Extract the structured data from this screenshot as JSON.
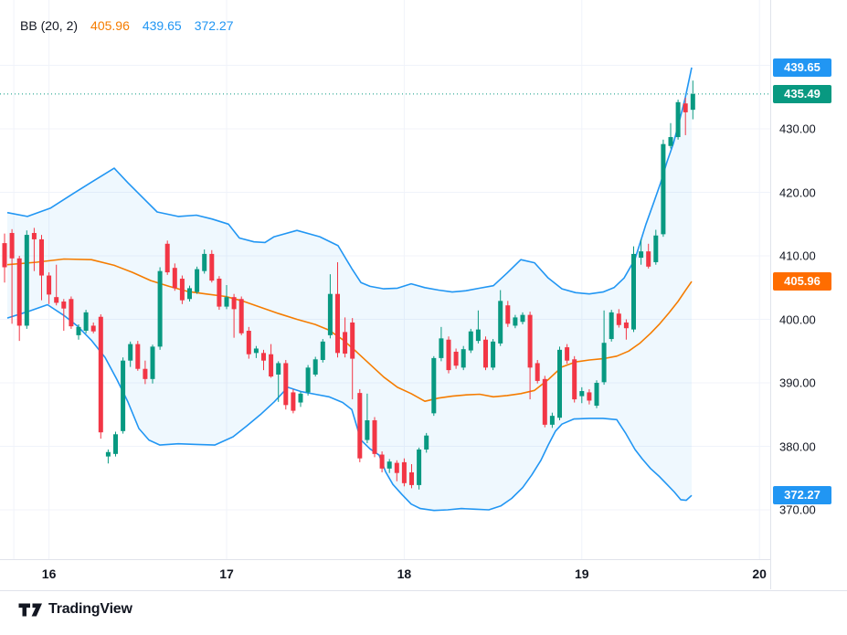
{
  "legend": {
    "name": "BB (20, 2)",
    "basis_value": "405.96",
    "upper_value": "439.65",
    "lower_value": "372.27"
  },
  "logo": {
    "text": "TradingView"
  },
  "colors": {
    "up": "#089981",
    "down": "#f23645",
    "band_line": "#2196f3",
    "band_fill": "rgba(33,150,243,0.07)",
    "basis_line": "#f57c00",
    "price_line": "#089981",
    "legend_basis": "#f57c00",
    "legend_band": "#2196f3",
    "badge_blue": "#2196f3",
    "badge_green": "#089981",
    "badge_orange": "#ff6d00",
    "text": "#131722",
    "grid": "#f0f3fa",
    "axis_border": "#e0e3eb"
  },
  "price_axis": {
    "labels": [
      {
        "text": "430.00",
        "price": 430
      },
      {
        "text": "420.00",
        "price": 420
      },
      {
        "text": "410.00",
        "price": 410
      },
      {
        "text": "400.00",
        "price": 400
      },
      {
        "text": "390.00",
        "price": 390
      },
      {
        "text": "380.00",
        "price": 380
      },
      {
        "text": "370.00",
        "price": 370
      }
    ],
    "badges": [
      {
        "text": "439.65",
        "price": 439.65,
        "color_key": "badge_blue"
      },
      {
        "text": "435.49",
        "price": 435.49,
        "color_key": "badge_green"
      },
      {
        "text": "405.96",
        "price": 405.96,
        "color_key": "badge_orange"
      },
      {
        "text": "372.27",
        "price": 372.27,
        "color_key": "badge_blue"
      }
    ]
  },
  "time_axis": {
    "labels": [
      {
        "text": "16",
        "index": 6
      },
      {
        "text": "17",
        "index": 30
      },
      {
        "text": "18",
        "index": 54
      },
      {
        "text": "19",
        "index": 78
      },
      {
        "text": "20",
        "index": 102
      }
    ]
  },
  "chart_data": {
    "type": "candlestick",
    "title": "BB (20, 2)",
    "indicator": {
      "name": "Bollinger Bands",
      "length": 20,
      "stddev": 2,
      "basis": 405.96,
      "upper": 439.65,
      "lower": 372.27
    },
    "last_price": 435.49,
    "ylim": [
      366,
      443
    ],
    "h_grid_prices": [
      440,
      430,
      420,
      410,
      400,
      390,
      380,
      370
    ],
    "v_grid_indices": [
      1.25,
      6,
      30,
      54,
      78,
      102
    ],
    "candles": [
      [
        412.0,
        413.5,
        405.8,
        408.2
      ],
      [
        413.6,
        414.2,
        399.3,
        409.6
      ],
      [
        409.6,
        410.0,
        396.6,
        399.0
      ],
      [
        399.0,
        414.0,
        398.5,
        413.3
      ],
      [
        413.6,
        414.4,
        407.6,
        412.6
      ],
      [
        412.6,
        413.3,
        403.0,
        406.9
      ],
      [
        406.9,
        407.4,
        402.4,
        403.9
      ],
      [
        403.5,
        408.6,
        402.2,
        402.6
      ],
      [
        402.8,
        403.2,
        398.2,
        401.7
      ],
      [
        403.2,
        403.6,
        398.5,
        398.9
      ],
      [
        397.5,
        399.2,
        396.8,
        398.8
      ],
      [
        398.2,
        401.5,
        397.8,
        401.1
      ],
      [
        399.0,
        399.5,
        397.8,
        398.1
      ],
      [
        400.4,
        400.8,
        381.2,
        382.2
      ],
      [
        378.4,
        379.5,
        377.3,
        379.1
      ],
      [
        378.8,
        382.3,
        378.4,
        381.9
      ],
      [
        382.4,
        394.0,
        382.0,
        393.5
      ],
      [
        393.5,
        396.5,
        392.5,
        396.1
      ],
      [
        396.1,
        396.6,
        391.9,
        392.2
      ],
      [
        392.2,
        393.5,
        389.8,
        390.6
      ],
      [
        390.6,
        396.0,
        389.9,
        395.7
      ],
      [
        395.7,
        408.2,
        395.2,
        407.6
      ],
      [
        411.9,
        412.4,
        407.0,
        407.4
      ],
      [
        408.1,
        408.8,
        404.5,
        404.9
      ],
      [
        406.4,
        406.9,
        402.4,
        403.0
      ],
      [
        403.2,
        405.3,
        402.8,
        404.9
      ],
      [
        404.3,
        408.3,
        404.0,
        407.9
      ],
      [
        407.6,
        411.0,
        407.2,
        410.3
      ],
      [
        410.3,
        410.9,
        405.8,
        406.1
      ],
      [
        406.4,
        406.8,
        401.5,
        402.0
      ],
      [
        402.0,
        405.4,
        401.6,
        403.5
      ],
      [
        403.5,
        404.0,
        397.1,
        401.6
      ],
      [
        403.2,
        403.6,
        397.5,
        397.8
      ],
      [
        398.2,
        398.8,
        393.8,
        394.5
      ],
      [
        394.7,
        395.8,
        393.9,
        395.4
      ],
      [
        394.7,
        395.2,
        392.0,
        393.5
      ],
      [
        394.5,
        396.1,
        390.8,
        391.0
      ],
      [
        391.3,
        393.4,
        387.0,
        393.1
      ],
      [
        393.1,
        393.6,
        385.8,
        386.5
      ],
      [
        388.5,
        389.0,
        385.2,
        385.6
      ],
      [
        386.9,
        388.6,
        386.2,
        388.3
      ],
      [
        388.5,
        392.8,
        388.0,
        392.4
      ],
      [
        391.3,
        394.1,
        391.0,
        393.7
      ],
      [
        393.6,
        396.9,
        393.2,
        396.5
      ],
      [
        397.5,
        407.1,
        397.0,
        404.0
      ],
      [
        404.0,
        409.0,
        394.0,
        394.7
      ],
      [
        398.0,
        400.3,
        394.0,
        394.6
      ],
      [
        399.5,
        400.2,
        387.4,
        393.8
      ],
      [
        388.4,
        389.0,
        377.5,
        378.1
      ],
      [
        381.0,
        388.3,
        380.5,
        384.1
      ],
      [
        384.1,
        384.6,
        378.3,
        378.8
      ],
      [
        378.7,
        379.2,
        375.9,
        376.5
      ],
      [
        376.5,
        378.0,
        375.8,
        377.6
      ],
      [
        377.4,
        377.8,
        374.5,
        375.8
      ],
      [
        377.5,
        378.1,
        373.7,
        374.2
      ],
      [
        375.9,
        377.2,
        373.4,
        373.9
      ],
      [
        373.9,
        379.8,
        373.2,
        379.5
      ],
      [
        379.5,
        382.1,
        379.0,
        381.7
      ],
      [
        385.2,
        394.2,
        384.8,
        393.9
      ],
      [
        393.9,
        398.8,
        393.4,
        397.0
      ],
      [
        396.8,
        397.3,
        391.5,
        392.0
      ],
      [
        394.9,
        395.4,
        392.2,
        392.7
      ],
      [
        392.4,
        395.8,
        392.0,
        395.3
      ],
      [
        395.1,
        398.5,
        394.7,
        398.1
      ],
      [
        396.6,
        401.4,
        396.2,
        398.4
      ],
      [
        396.8,
        397.3,
        392.0,
        392.4
      ],
      [
        392.4,
        396.9,
        392.0,
        396.5
      ],
      [
        396.2,
        404.6,
        395.8,
        402.9
      ],
      [
        402.2,
        402.9,
        398.8,
        399.3
      ],
      [
        399.0,
        400.7,
        398.6,
        400.3
      ],
      [
        399.6,
        401.1,
        399.2,
        400.7
      ],
      [
        400.7,
        401.2,
        387.4,
        392.4
      ],
      [
        393.1,
        393.6,
        389.9,
        390.3
      ],
      [
        390.6,
        391.1,
        383.0,
        383.4
      ],
      [
        383.4,
        385.3,
        382.9,
        384.8
      ],
      [
        384.5,
        395.7,
        384.1,
        395.2
      ],
      [
        395.6,
        396.1,
        393.0,
        393.5
      ],
      [
        393.7,
        394.2,
        386.9,
        387.4
      ],
      [
        387.9,
        389.3,
        386.8,
        388.7
      ],
      [
        388.5,
        389.0,
        386.6,
        387.2
      ],
      [
        386.4,
        390.4,
        386.0,
        390.0
      ],
      [
        390.1,
        401.4,
        389.7,
        396.3
      ],
      [
        396.9,
        401.5,
        396.5,
        401.1
      ],
      [
        400.9,
        401.6,
        398.7,
        399.1
      ],
      [
        399.5,
        400.0,
        396.8,
        398.6
      ],
      [
        398.4,
        411.5,
        398.0,
        410.3
      ],
      [
        409.7,
        412.6,
        408.6,
        410.7
      ],
      [
        410.7,
        411.9,
        408.0,
        408.3
      ],
      [
        409.0,
        414.1,
        408.6,
        413.2
      ],
      [
        413.4,
        428.3,
        413.0,
        427.6
      ],
      [
        427.3,
        430.9,
        426.9,
        428.7
      ],
      [
        428.7,
        434.6,
        428.3,
        434.2
      ],
      [
        434.0,
        434.9,
        429.0,
        432.6
      ],
      [
        433.0,
        437.6,
        431.5,
        435.49
      ]
    ],
    "bands": {
      "upper": [
        [
          8,
          416.8
        ],
        [
          30,
          416.2
        ],
        [
          55,
          417.5
        ],
        [
          80,
          419.8
        ],
        [
          100,
          421.6
        ],
        [
          125,
          423.8
        ],
        [
          140,
          421.5
        ],
        [
          158,
          418.9
        ],
        [
          172,
          416.9
        ],
        [
          195,
          416.2
        ],
        [
          215,
          416.4
        ],
        [
          232,
          415.8
        ],
        [
          250,
          415.0
        ],
        [
          262,
          412.8
        ],
        [
          278,
          412.2
        ],
        [
          290,
          412.1
        ],
        [
          300,
          413.0
        ],
        [
          325,
          414.0
        ],
        [
          350,
          413.0
        ],
        [
          370,
          411.6
        ],
        [
          385,
          408.0
        ],
        [
          395,
          405.8
        ],
        [
          405,
          405.2
        ],
        [
          420,
          404.8
        ],
        [
          435,
          404.9
        ],
        [
          450,
          405.6
        ],
        [
          465,
          405.0
        ],
        [
          480,
          404.6
        ],
        [
          495,
          404.3
        ],
        [
          510,
          404.5
        ],
        [
          525,
          404.9
        ],
        [
          540,
          405.3
        ],
        [
          555,
          407.3
        ],
        [
          570,
          409.4
        ],
        [
          585,
          408.9
        ],
        [
          600,
          406.5
        ],
        [
          615,
          404.8
        ],
        [
          630,
          404.2
        ],
        [
          645,
          404.0
        ],
        [
          660,
          404.3
        ],
        [
          672,
          405.0
        ],
        [
          683,
          406.5
        ],
        [
          695,
          409.5
        ],
        [
          707,
          415.0
        ],
        [
          716,
          418.6
        ],
        [
          723,
          421.5
        ],
        [
          730,
          424.8
        ],
        [
          737,
          427.7
        ],
        [
          744,
          431.5
        ],
        [
          750,
          434.9
        ],
        [
          757,
          439.65
        ]
      ],
      "middle": [
        [
          8,
          408.6
        ],
        [
          40,
          409.0
        ],
        [
          70,
          409.5
        ],
        [
          100,
          409.4
        ],
        [
          125,
          408.5
        ],
        [
          145,
          407.4
        ],
        [
          165,
          406.1
        ],
        [
          185,
          405.2
        ],
        [
          205,
          404.4
        ],
        [
          225,
          404.0
        ],
        [
          247,
          403.6
        ],
        [
          265,
          402.9
        ],
        [
          285,
          401.9
        ],
        [
          305,
          400.9
        ],
        [
          325,
          400.0
        ],
        [
          345,
          399.2
        ],
        [
          360,
          398.3
        ],
        [
          375,
          396.8
        ],
        [
          390,
          394.9
        ],
        [
          405,
          392.9
        ],
        [
          420,
          390.9
        ],
        [
          435,
          389.3
        ],
        [
          450,
          388.3
        ],
        [
          465,
          387.1
        ],
        [
          480,
          387.6
        ],
        [
          495,
          387.9
        ],
        [
          510,
          388.1
        ],
        [
          525,
          388.2
        ],
        [
          540,
          387.8
        ],
        [
          555,
          388.0
        ],
        [
          570,
          388.3
        ],
        [
          585,
          388.8
        ],
        [
          600,
          390.5
        ],
        [
          615,
          392.5
        ],
        [
          630,
          393.3
        ],
        [
          645,
          393.6
        ],
        [
          660,
          393.8
        ],
        [
          675,
          394.2
        ],
        [
          688,
          395.0
        ],
        [
          700,
          396.2
        ],
        [
          712,
          397.8
        ],
        [
          722,
          399.3
        ],
        [
          732,
          401.0
        ],
        [
          742,
          402.8
        ],
        [
          750,
          404.5
        ],
        [
          757,
          405.96
        ]
      ],
      "lower": [
        [
          8,
          400.2
        ],
        [
          30,
          401.2
        ],
        [
          52,
          402.3
        ],
        [
          70,
          400.6
        ],
        [
          85,
          398.9
        ],
        [
          100,
          396.7
        ],
        [
          115,
          394.0
        ],
        [
          128,
          390.5
        ],
        [
          140,
          387.0
        ],
        [
          152,
          382.8
        ],
        [
          163,
          381.0
        ],
        [
          175,
          380.2
        ],
        [
          195,
          380.4
        ],
        [
          215,
          380.3
        ],
        [
          235,
          380.2
        ],
        [
          255,
          381.5
        ],
        [
          270,
          383.2
        ],
        [
          285,
          385.0
        ],
        [
          300,
          387.0
        ],
        [
          315,
          389.3
        ],
        [
          330,
          388.6
        ],
        [
          345,
          388.2
        ],
        [
          360,
          387.8
        ],
        [
          375,
          386.9
        ],
        [
          385,
          385.8
        ],
        [
          395,
          381.0
        ],
        [
          405,
          379.6
        ],
        [
          415,
          378.6
        ],
        [
          422,
          376.0
        ],
        [
          430,
          374.0
        ],
        [
          440,
          372.4
        ],
        [
          450,
          370.9
        ],
        [
          460,
          370.2
        ],
        [
          475,
          369.9
        ],
        [
          490,
          370.0
        ],
        [
          505,
          370.2
        ],
        [
          520,
          370.1
        ],
        [
          535,
          370.0
        ],
        [
          548,
          370.6
        ],
        [
          560,
          371.8
        ],
        [
          572,
          373.5
        ],
        [
          582,
          375.5
        ],
        [
          592,
          377.8
        ],
        [
          600,
          380.2
        ],
        [
          608,
          382.4
        ],
        [
          615,
          383.5
        ],
        [
          628,
          384.3
        ],
        [
          645,
          384.4
        ],
        [
          660,
          384.4
        ],
        [
          675,
          384.2
        ],
        [
          685,
          382.0
        ],
        [
          695,
          379.5
        ],
        [
          703,
          378.0
        ],
        [
          712,
          376.5
        ],
        [
          722,
          375.2
        ],
        [
          730,
          374.0
        ],
        [
          738,
          372.8
        ],
        [
          745,
          371.6
        ],
        [
          751,
          371.5
        ],
        [
          757,
          372.27
        ]
      ]
    }
  }
}
